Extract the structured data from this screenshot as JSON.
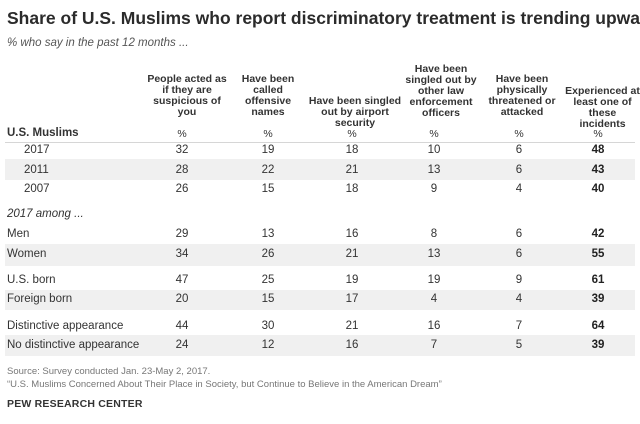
{
  "title": "Share of U.S. Muslims who report discriminatory treatment is trending upward",
  "subtitle": "% who say in the past 12 months ...",
  "columns": [
    "People acted as if they are suspicious of you",
    "Have been called offensive names",
    "Have been singled out by airport security",
    "Have been singled out by other law enforcement officers",
    "Have been physically threatened or attacked",
    "Experienced at least one of these incidents"
  ],
  "sections": {
    "us_muslims": "U.S. Muslims",
    "among_2017": "2017 among ..."
  },
  "pct_symbol": "%",
  "source": "Source: Survey conducted Jan. 23-May 2, 2017.",
  "report": "“U.S. Muslims Concerned About Their Place in Society, but Continue to Believe in the American Dream”",
  "brand": "PEW RESEARCH CENTER",
  "chart_data": {
    "type": "table",
    "title": "Share of U.S. Muslims who report discriminatory treatment is trending upward",
    "columns": [
      "People acted as if they are suspicious of you",
      "Have been called offensive names",
      "Have been singled out by airport security",
      "Have been singled out by other law enforcement officers",
      "Have been physically threatened or attacked",
      "Experienced at least one of these incidents"
    ],
    "rows": [
      {
        "label": "2017",
        "values": [
          "32",
          "19",
          "18",
          "10",
          "6",
          "48"
        ]
      },
      {
        "label": "2011",
        "values": [
          "28",
          "22",
          "21",
          "13",
          "6",
          "43"
        ]
      },
      {
        "label": "2007",
        "values": [
          "26",
          "15",
          "18",
          "9",
          "4",
          "40"
        ]
      },
      {
        "label": "Men",
        "values": [
          "29",
          "13",
          "16",
          "8",
          "6",
          "42"
        ]
      },
      {
        "label": "Women",
        "values": [
          "34",
          "26",
          "21",
          "13",
          "6",
          "55"
        ]
      },
      {
        "label": "U.S. born",
        "values": [
          "47",
          "25",
          "19",
          "19",
          "9",
          "61"
        ]
      },
      {
        "label": "Foreign born",
        "values": [
          "20",
          "15",
          "17",
          "4",
          "4",
          "39"
        ]
      },
      {
        "label": "Distinctive appearance",
        "values": [
          "44",
          "30",
          "21",
          "16",
          "7",
          "64"
        ]
      },
      {
        "label": "No distinctive appearance",
        "values": [
          "24",
          "12",
          "16",
          "7",
          "5",
          "39"
        ]
      }
    ]
  }
}
